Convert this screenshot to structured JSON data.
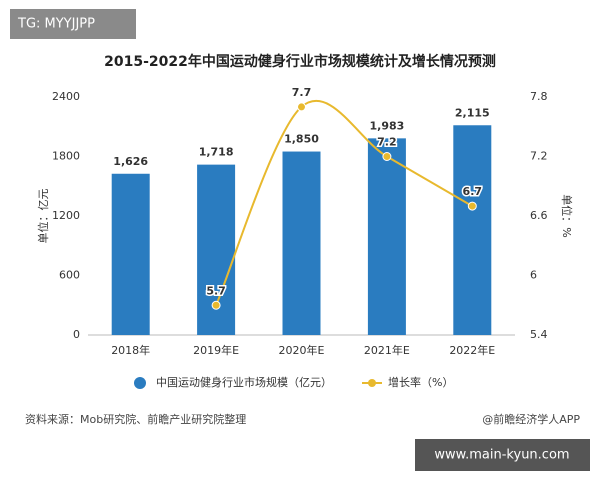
{
  "overlay": {
    "top_tag": "TG: MYYJJPP",
    "bottom_tag": "www.main-kyun.com"
  },
  "chart_data": {
    "type": "combo",
    "title": "2015-2022年中国运动健身行业市场规模统计及增长情况预测",
    "y_label": "单位：亿元",
    "y2_label": "单位：%",
    "source": "资料来源：Mob研究院、前瞻产业研究院整理",
    "credit": "@前瞻经济学人APP",
    "categories": [
      "2018年",
      "2019年E",
      "2020年E",
      "2021年E",
      "2022年E"
    ],
    "series": [
      {
        "name": "中国运动健身行业市场规模（亿元）",
        "type": "bar",
        "color": "#2a7cc0",
        "values": [
          1626,
          1718,
          1850,
          1983,
          2115
        ],
        "value_labels": [
          "1,626",
          "1,718",
          "1,850",
          "1,983",
          "2,115"
        ]
      },
      {
        "name": "增长率（%）",
        "type": "line",
        "axis": "y2",
        "color": "#e8b92e",
        "values": [
          null,
          5.7,
          7.7,
          7.2,
          6.7
        ]
      }
    ],
    "ylim": [
      0,
      2400
    ],
    "yticks": [
      0,
      600,
      1200,
      1800,
      2400
    ],
    "y2lim": [
      5.4,
      7.8
    ],
    "y2ticks": [
      5.4,
      6,
      6.6,
      7.2,
      7.8
    ],
    "grid": false
  }
}
